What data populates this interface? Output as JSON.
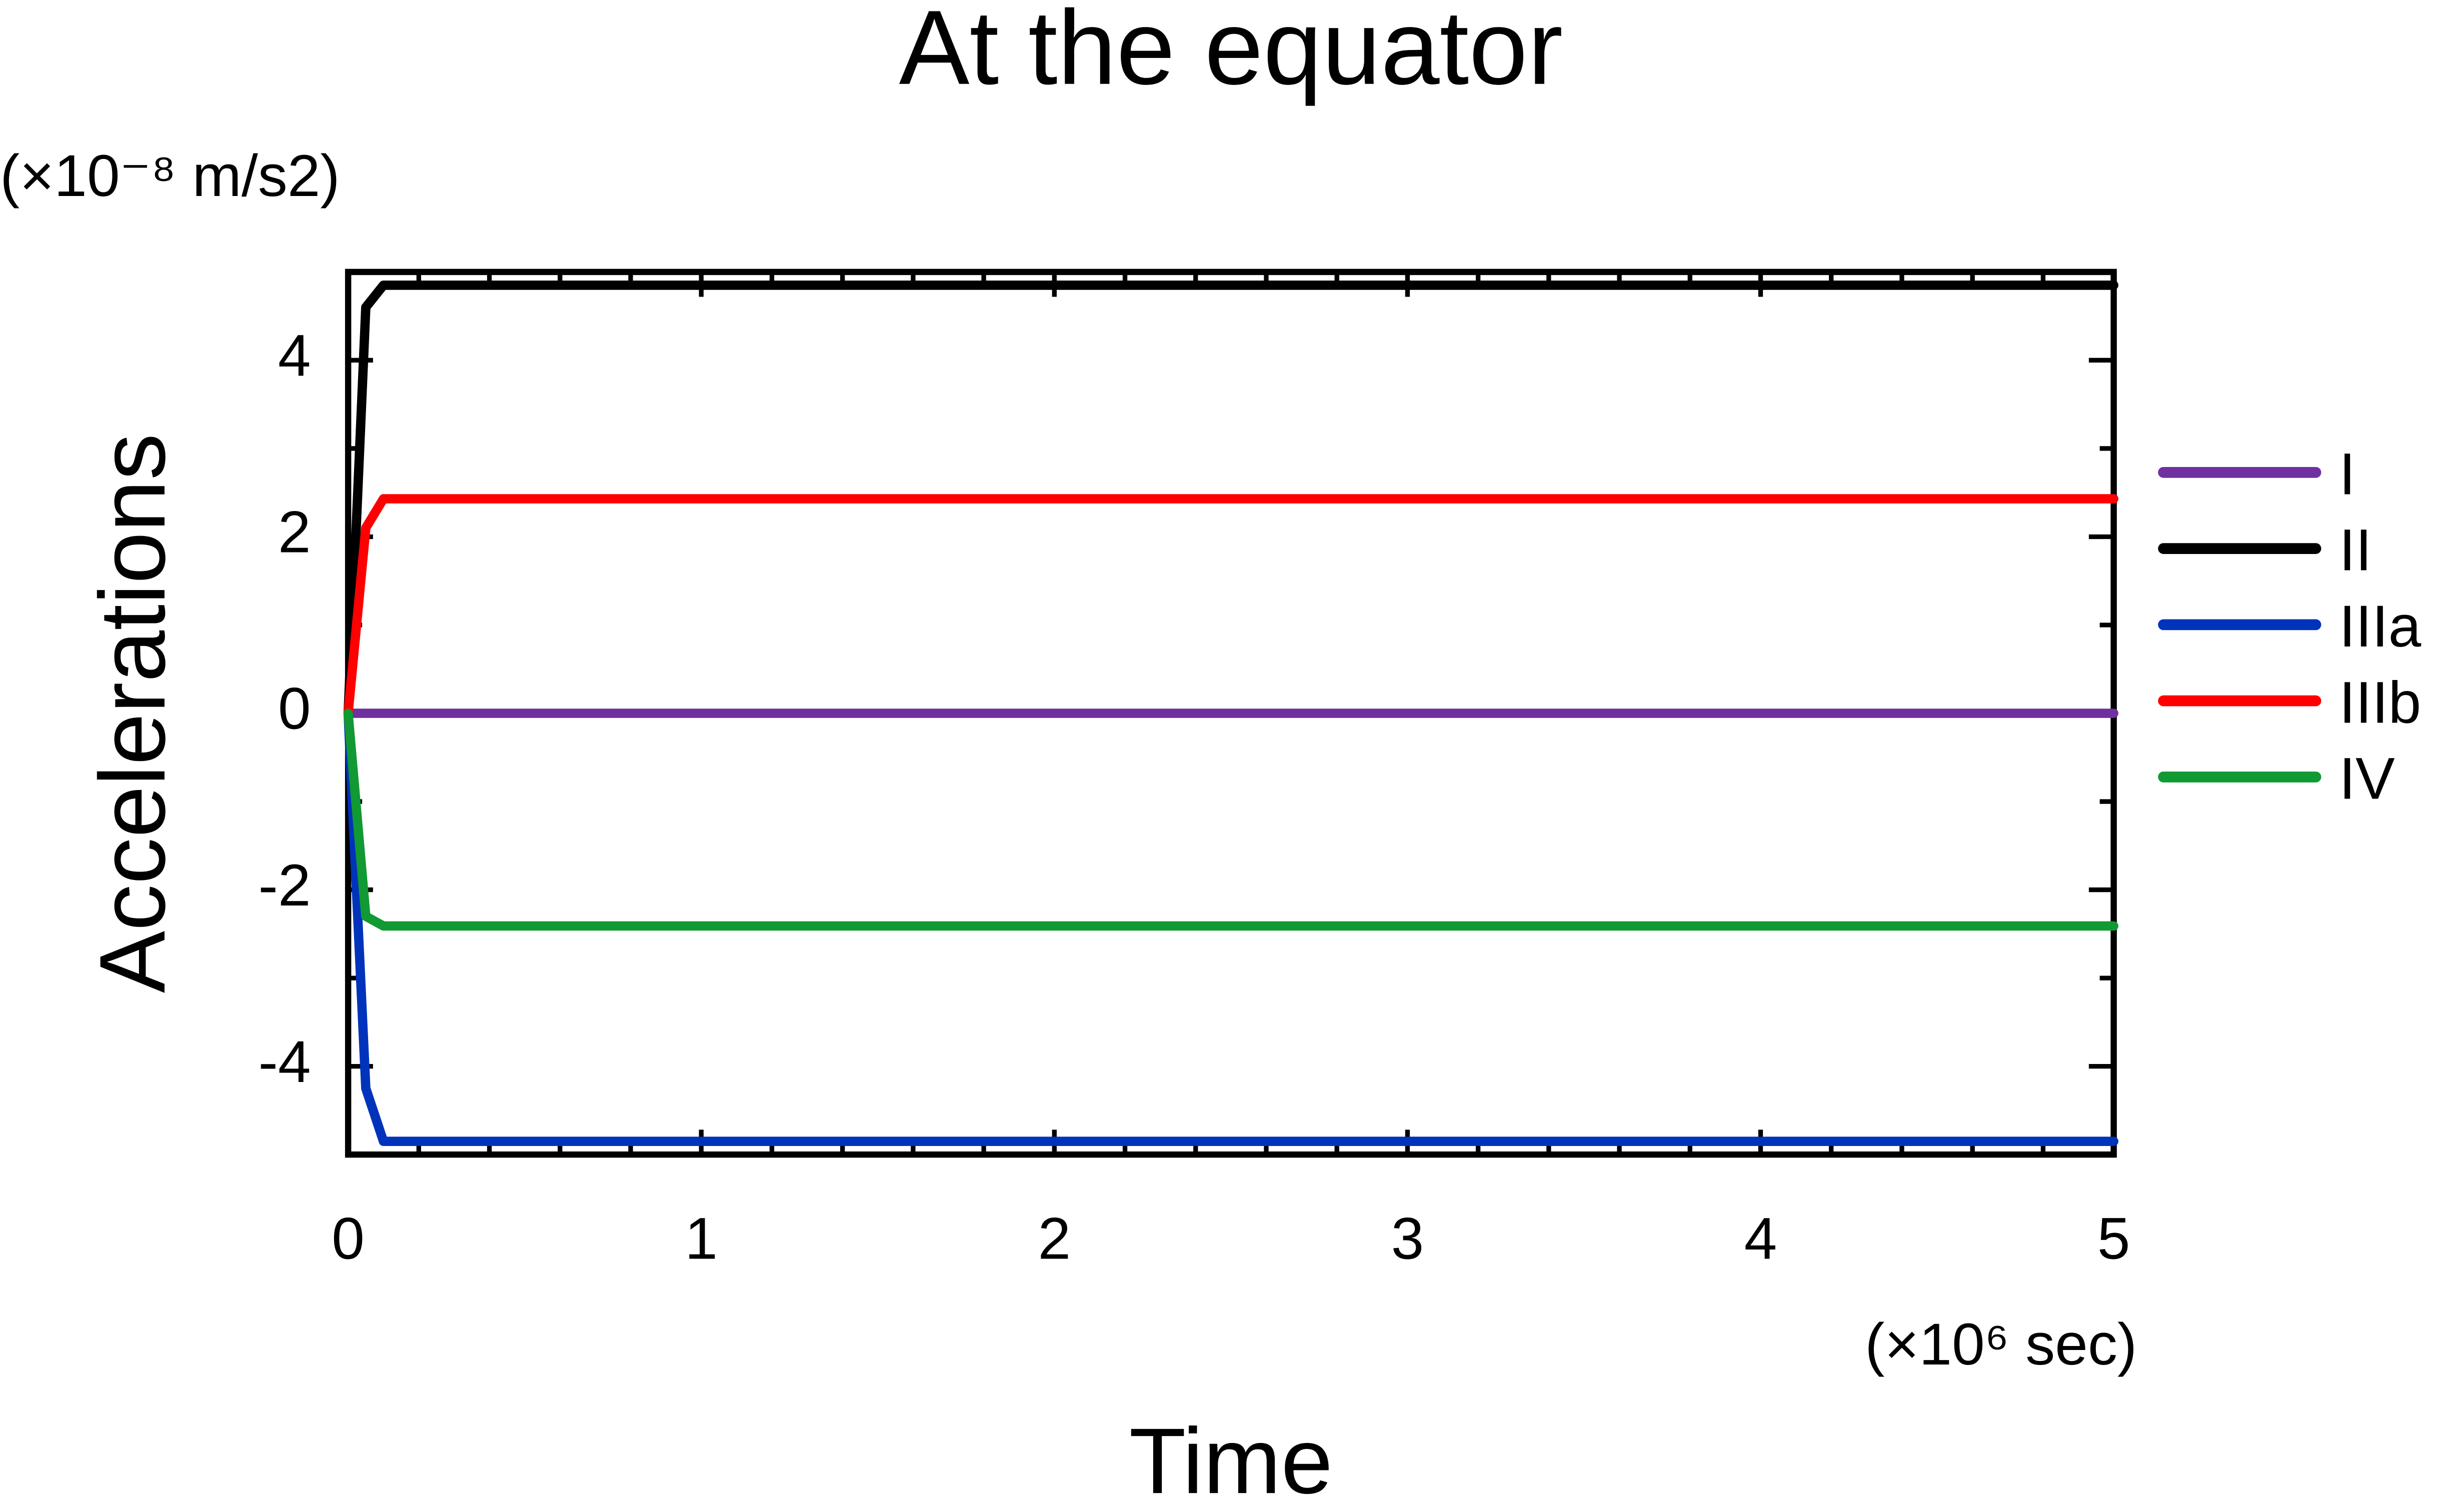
{
  "chart_data": {
    "type": "line",
    "title": "At the equator",
    "y_unit": "(×10⁻⁸ m/s2)",
    "x_unit": "(×10⁶ sec)",
    "xlabel": "Time",
    "ylabel": "Accelerations",
    "x": [
      0,
      0.05,
      0.1,
      5
    ],
    "series": [
      {
        "name": "I",
        "color": "#7030a0",
        "values": [
          0,
          0,
          0,
          0
        ]
      },
      {
        "name": "II",
        "color": "#000000",
        "values": [
          0,
          4.6,
          4.85,
          4.85
        ]
      },
      {
        "name": "IIIa",
        "color": "#0033bb",
        "values": [
          0,
          -4.25,
          -4.85,
          -4.85
        ]
      },
      {
        "name": "IIIb",
        "color": "#ff0000",
        "values": [
          0,
          2.1,
          2.43,
          2.43
        ]
      },
      {
        "name": "IV",
        "color": "#119933",
        "values": [
          0,
          -2.3,
          -2.41,
          -2.41
        ]
      }
    ],
    "xlim": [
      0,
      5
    ],
    "xticks": [
      0,
      1,
      2,
      3,
      4,
      5
    ],
    "xminorticks": [
      0.2,
      0.4,
      0.6,
      0.8,
      1.2,
      1.4,
      1.6,
      1.8,
      2.2,
      2.4,
      2.6,
      2.8,
      3.2,
      3.4,
      3.6,
      3.8,
      4.2,
      4.4,
      4.6,
      4.8
    ],
    "ylim": [
      -5,
      5
    ],
    "yticks": [
      -4,
      -2,
      0,
      2,
      4
    ],
    "yminorticks": [
      -5,
      -3,
      -1,
      1,
      3,
      5
    ],
    "grid": false,
    "legend": "outside-right"
  }
}
